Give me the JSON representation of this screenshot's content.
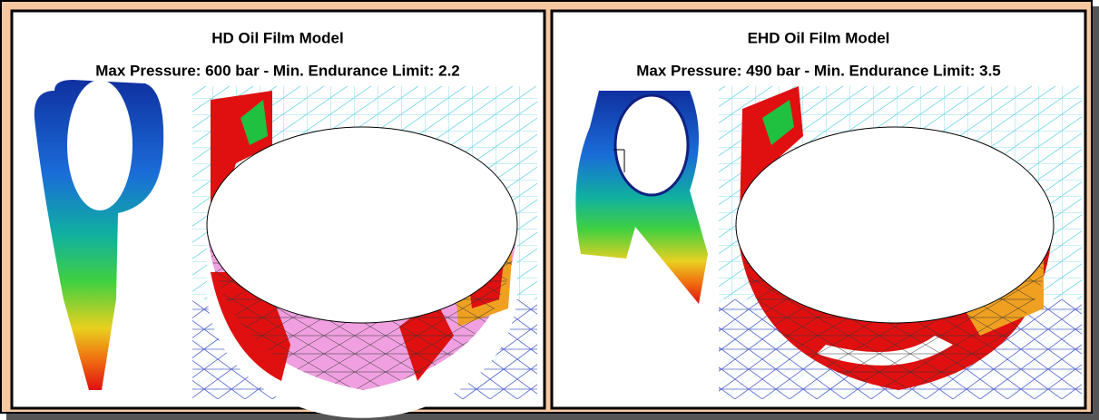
{
  "panels": [
    {
      "title": "HD Oil Film Model",
      "subtitle": "Max Pressure: 600 bar - Min. Endurance Limit: 2.2"
    },
    {
      "title": "EHD Oil Film Model",
      "subtitle": "Max Pressure: 490 bar - Min. Endurance Limit: 3.5"
    }
  ]
}
